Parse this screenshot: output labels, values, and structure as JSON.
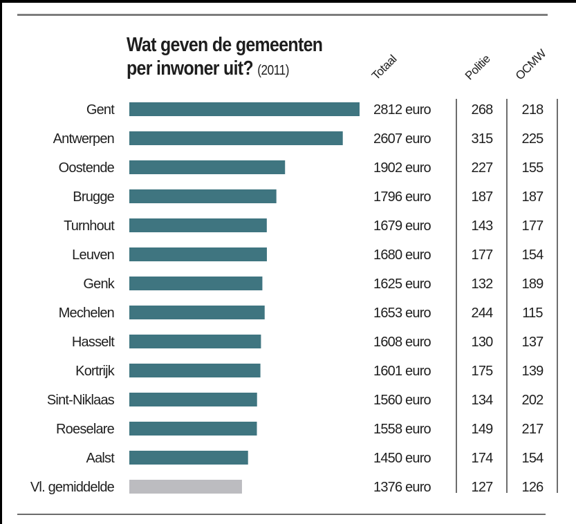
{
  "title_line1": "Wat geven de gemeenten",
  "title_line2": "per inwoner uit?",
  "title_year": "(2011)",
  "columns": {
    "totaal": "Totaal",
    "politie": "Politie",
    "ocmw": "OCMW"
  },
  "colors": {
    "bar": "#3f7580",
    "average_bar": "#bcbcc0",
    "text": "#1e1e1e",
    "rule": "#7d7d7d"
  },
  "chart_data": {
    "type": "bar",
    "orientation": "horizontal",
    "title": "Wat geven de gemeenten per inwoner uit? (2011)",
    "unit": "euro",
    "categories": [
      "Gent",
      "Antwerpen",
      "Oostende",
      "Brugge",
      "Turnhout",
      "Leuven",
      "Genk",
      "Mechelen",
      "Hasselt",
      "Kortrijk",
      "Sint-Niklaas",
      "Roeselare",
      "Aalst",
      "Vl. gemiddelde"
    ],
    "series": [
      {
        "name": "Totaal",
        "values": [
          2812,
          2607,
          1902,
          1796,
          1679,
          1680,
          1625,
          1653,
          1608,
          1601,
          1560,
          1558,
          1450,
          1376
        ],
        "labels": [
          "2812 euro",
          "2607 euro",
          "1902 euro",
          "1796 euro",
          "1679 euro",
          "1680 euro",
          "1625 euro",
          "1653 euro",
          "1608 euro",
          "1601 euro",
          "1560 euro",
          "1558 euro",
          "1450 euro",
          "1376 euro"
        ]
      },
      {
        "name": "Politie",
        "values": [
          268,
          315,
          227,
          187,
          143,
          177,
          132,
          244,
          130,
          175,
          134,
          149,
          174,
          127
        ]
      },
      {
        "name": "OCMW",
        "values": [
          218,
          225,
          155,
          187,
          177,
          154,
          189,
          115,
          137,
          139,
          202,
          217,
          154,
          126
        ]
      }
    ],
    "highlight_category": "Vl. gemiddelde",
    "xlim": [
      0,
      2812
    ],
    "grid": false,
    "legend": "none"
  }
}
